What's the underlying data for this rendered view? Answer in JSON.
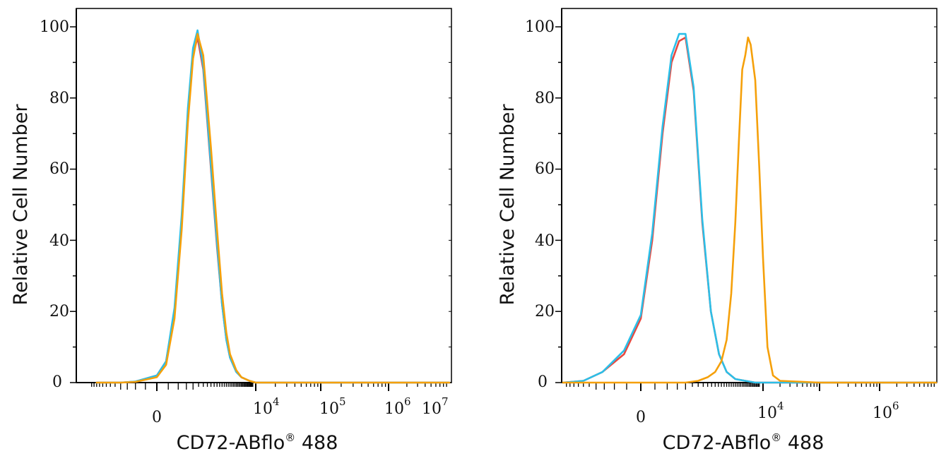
{
  "chart_data": [
    {
      "type": "line",
      "panel": "left",
      "xlabel": "CD72-ABflo",
      "xlabel_mark": "®",
      "xlabel_suffix": " 488",
      "ylabel": "Relative Cell Number",
      "ylim": [
        0,
        105
      ],
      "x_scale": "biexponential",
      "x_ticks": [
        {
          "base": "0",
          "exp": ""
        },
        {
          "base": "10",
          "exp": "4"
        },
        {
          "base": "10",
          "exp": "5"
        },
        {
          "base": "10",
          "exp": "6"
        },
        {
          "base": "10",
          "exp": "7"
        }
      ],
      "y_ticks": [
        "0",
        "20",
        "40",
        "60",
        "80",
        "100"
      ],
      "grid": false,
      "series": [
        {
          "color": "#e8483f",
          "x": [
            -2500,
            -1000,
            -500,
            0,
            200,
            400,
            600,
            800,
            1000,
            1200,
            1500,
            2000,
            2500,
            3000,
            3500,
            4000,
            5000,
            6000,
            8000,
            10000,
            1000000,
            10000000
          ],
          "values": [
            0,
            0,
            0.3,
            2,
            6,
            20,
            45,
            75,
            92,
            97,
            88,
            60,
            38,
            22,
            12,
            7,
            3,
            1.5,
            0.5,
            0,
            0,
            0
          ]
        },
        {
          "color": "#2bbfe8",
          "x": [
            -2500,
            -1000,
            -500,
            0,
            200,
            400,
            600,
            800,
            1000,
            1200,
            1500,
            2000,
            2500,
            3000,
            3500,
            4000,
            5000,
            6000,
            8000,
            10000,
            1000000,
            10000000
          ],
          "values": [
            0,
            0,
            0.3,
            2,
            6,
            21,
            47,
            77,
            94,
            99,
            89,
            61,
            39,
            22,
            12,
            7,
            3,
            1.5,
            0.5,
            0,
            0,
            0
          ]
        },
        {
          "color": "#f5a00a",
          "x": [
            -2500,
            -1000,
            -500,
            0,
            200,
            400,
            600,
            800,
            1000,
            1200,
            1500,
            2000,
            2500,
            3000,
            3500,
            4000,
            5000,
            6000,
            8000,
            10000,
            1000000,
            10000000
          ],
          "values": [
            0,
            0,
            0.2,
            1.5,
            5,
            18,
            43,
            73,
            91,
            98,
            92,
            66,
            43,
            25,
            14,
            8,
            3.5,
            1.5,
            0.5,
            0,
            0,
            0
          ]
        }
      ]
    },
    {
      "type": "line",
      "panel": "right",
      "xlabel": "CD72-ABflo",
      "xlabel_mark": "®",
      "xlabel_suffix": " 488",
      "ylabel": "Relative Cell Number",
      "ylim": [
        0,
        105
      ],
      "x_scale": "biexponential",
      "x_ticks": [
        {
          "base": "0",
          "exp": ""
        },
        {
          "base": "10",
          "exp": "4"
        },
        {
          "base": "10",
          "exp": "6"
        }
      ],
      "y_ticks": [
        "0",
        "20",
        "40",
        "60",
        "80",
        "100"
      ],
      "grid": false,
      "series": [
        {
          "color": "#e8483f",
          "x": [
            -3000,
            -1500,
            -800,
            -300,
            0,
            200,
            400,
            600,
            800,
            1000,
            1300,
            1700,
            2200,
            2800,
            3500,
            4500,
            6000,
            8000,
            12000,
            100000,
            10000000
          ],
          "values": [
            0,
            0.5,
            3,
            8,
            18,
            40,
            70,
            90,
            96,
            97,
            82,
            45,
            20,
            8,
            3,
            1,
            0.5,
            0,
            0,
            0,
            0
          ]
        },
        {
          "color": "#2bbfe8",
          "x": [
            -3000,
            -1500,
            -800,
            -300,
            0,
            200,
            400,
            600,
            800,
            1000,
            1300,
            1700,
            2200,
            2800,
            3500,
            4500,
            6000,
            8000,
            12000,
            100000,
            10000000
          ],
          "values": [
            0,
            0.5,
            3,
            9,
            19,
            42,
            72,
            92,
            98,
            98,
            83,
            46,
            20,
            8,
            3,
            1,
            0.5,
            0,
            0,
            0,
            0
          ]
        },
        {
          "color": "#f5a00a",
          "x": [
            -3000,
            0,
            1000,
            1500,
            2000,
            2500,
            3000,
            3500,
            4000,
            4500,
            5000,
            5500,
            6000,
            6500,
            7000,
            8000,
            9000,
            10000,
            12000,
            15000,
            20000,
            100000,
            10000000
          ],
          "values": [
            0,
            0,
            0,
            0.5,
            1.5,
            3,
            6,
            12,
            25,
            45,
            68,
            88,
            92,
            97,
            95,
            85,
            60,
            35,
            10,
            2,
            0.5,
            0,
            0
          ]
        }
      ]
    }
  ]
}
